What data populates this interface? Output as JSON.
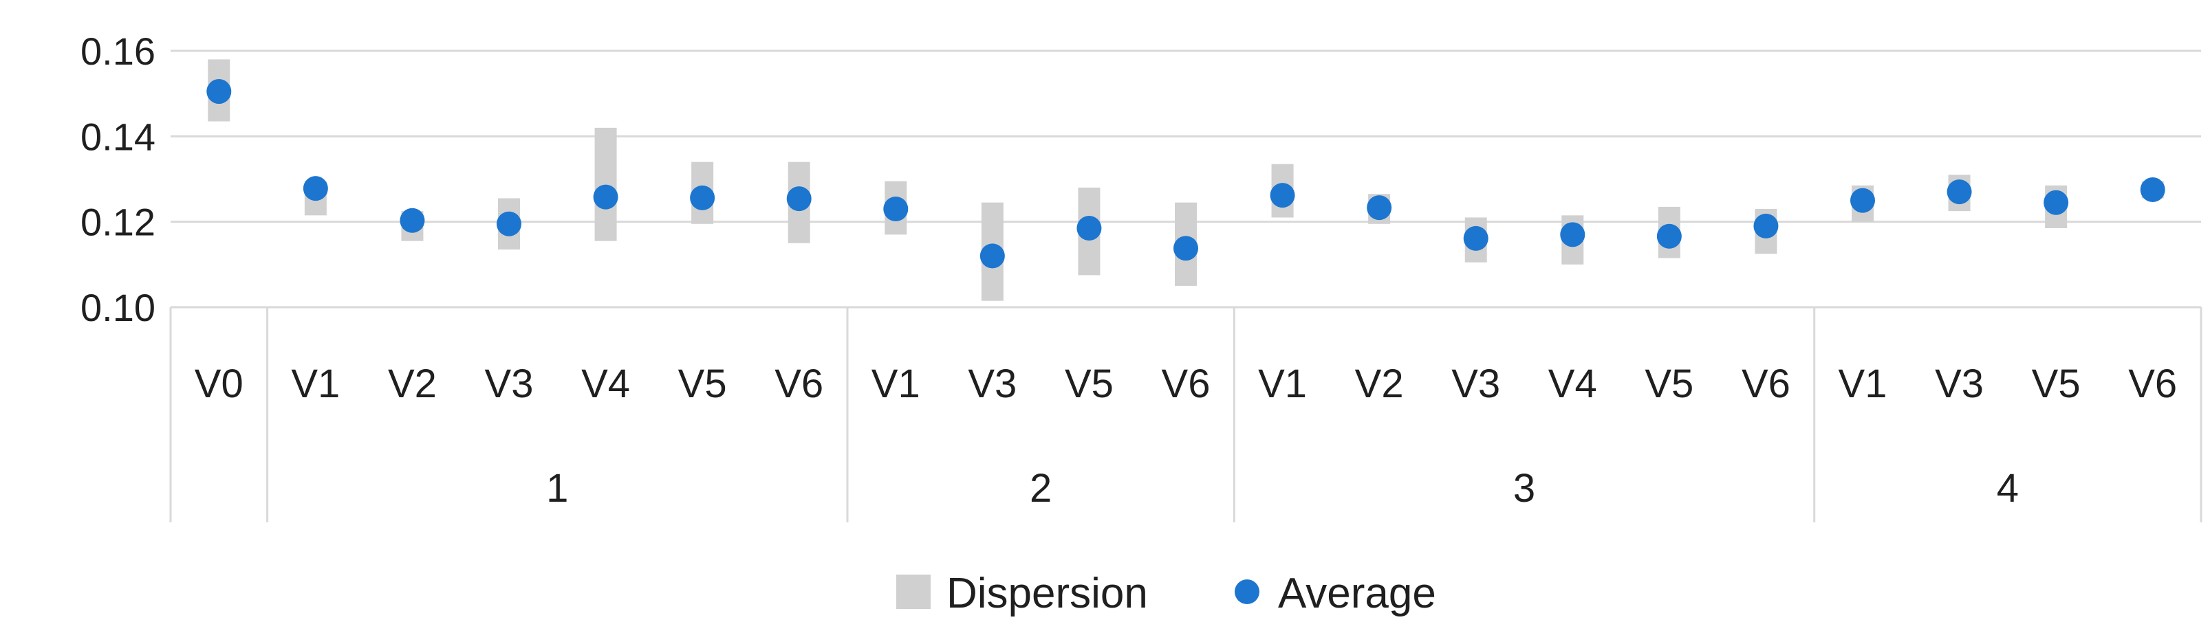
{
  "chart_data": {
    "type": "scatter",
    "title": "",
    "xlabel": "",
    "ylabel": "",
    "ylim": [
      0.1,
      0.16
    ],
    "y_ticks": [
      "0.10",
      "0.12",
      "0.14",
      "0.16"
    ],
    "y_tick_values": [
      0.1,
      0.12,
      0.14,
      0.16
    ],
    "grid": "horizontal",
    "legend_position": "bottom",
    "groups": [
      {
        "label": "",
        "categories": [
          "V0"
        ]
      },
      {
        "label": "1",
        "categories": [
          "V1",
          "V2",
          "V3",
          "V4",
          "V5",
          "V6"
        ]
      },
      {
        "label": "2",
        "categories": [
          "V1",
          "V3",
          "V5",
          "V6"
        ]
      },
      {
        "label": "3",
        "categories": [
          "V1",
          "V2",
          "V3",
          "V4",
          "V5",
          "V6"
        ]
      },
      {
        "label": "4",
        "categories": [
          "V1",
          "V3",
          "V5",
          "V6"
        ]
      }
    ],
    "series": [
      {
        "name": "Dispersion",
        "type": "range",
        "color": "#d0d0d0",
        "low": [
          0.1435,
          0.1215,
          0.1155,
          0.1135,
          0.1155,
          0.1195,
          0.115,
          0.117,
          0.1015,
          0.1075,
          0.105,
          0.121,
          0.1195,
          0.1105,
          0.11,
          0.1115,
          0.1125,
          0.12,
          0.1225,
          0.1185,
          0.1255
        ],
        "high": [
          0.158,
          0.1295,
          0.1225,
          0.1255,
          0.142,
          0.134,
          0.134,
          0.1295,
          0.1245,
          0.128,
          0.1245,
          0.1335,
          0.1265,
          0.121,
          0.1215,
          0.1235,
          0.123,
          0.1285,
          0.131,
          0.1285,
          0.1295
        ]
      },
      {
        "name": "Average",
        "type": "point",
        "color": "#1c75cf",
        "values": [
          0.1505,
          0.1278,
          0.1203,
          0.1195,
          0.1258,
          0.1256,
          0.1254,
          0.123,
          0.112,
          0.1185,
          0.1138,
          0.1262,
          0.1233,
          0.1161,
          0.117,
          0.1166,
          0.119,
          0.125,
          0.127,
          0.1245,
          0.1275
        ]
      }
    ]
  }
}
